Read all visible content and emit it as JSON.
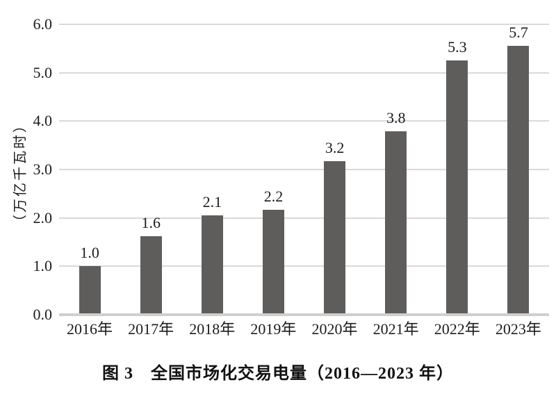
{
  "chart_data": {
    "type": "bar",
    "caption": "图 3　全国市场化交易电量（2016—2023 年）",
    "y_axis_title": "（万亿千瓦时）",
    "categories": [
      "2016年",
      "2017年",
      "2018年",
      "2019年",
      "2020年",
      "2021年",
      "2022年",
      "2023年"
    ],
    "values": [
      1.0,
      1.6,
      2.1,
      2.2,
      3.2,
      3.8,
      5.3,
      5.7
    ],
    "value_labels": [
      "1.0",
      "1.6",
      "2.1",
      "2.2",
      "3.2",
      "3.8",
      "5.3",
      "5.7"
    ],
    "bar_drawn_values": [
      1.0,
      1.62,
      2.05,
      2.17,
      3.17,
      3.79,
      5.25,
      5.67
    ],
    "y_ticks": [
      "0.0",
      "1.0",
      "2.0",
      "3.0",
      "4.0",
      "5.0",
      "6.0"
    ],
    "ylim": [
      0,
      6
    ],
    "grid": true,
    "legend_position": "none",
    "colors": {
      "bar": "#5f5c5c",
      "gridline": "#d9d9d9",
      "axis_line": "#cfcfcf",
      "text": "#1c1c1c",
      "background": "#ffffff"
    }
  }
}
